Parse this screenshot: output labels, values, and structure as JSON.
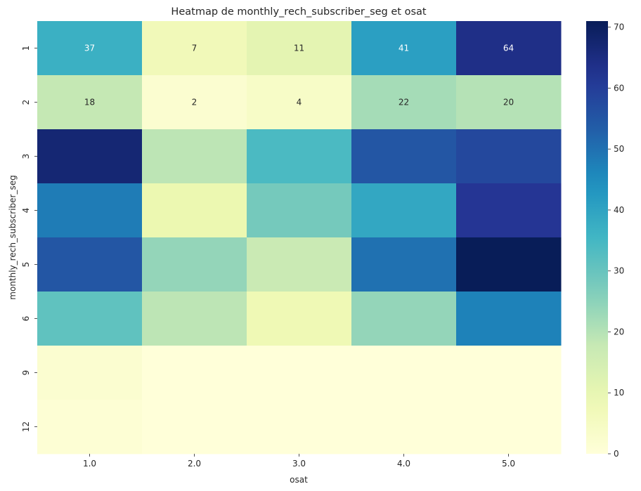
{
  "chart_data": {
    "type": "heatmap",
    "title": "Heatmap de monthly_rech_subscriber_seg et osat",
    "xlabel": "osat",
    "ylabel": "monthly_rech_subscriber_seg",
    "x_categories": [
      "1.0",
      "2.0",
      "3.0",
      "4.0",
      "5.0"
    ],
    "y_categories": [
      "1",
      "2",
      "3",
      "4",
      "5",
      "6",
      "9",
      "12"
    ],
    "values": [
      [
        37,
        7,
        11,
        41,
        64
      ],
      [
        18,
        2,
        4,
        22,
        20
      ],
      [
        67,
        19,
        34,
        55,
        58
      ],
      [
        48,
        9,
        28,
        39,
        62
      ],
      [
        55,
        24,
        17,
        50,
        71
      ],
      [
        31,
        19,
        8,
        24,
        47
      ],
      [
        2,
        0,
        0,
        0,
        0
      ],
      [
        1,
        0,
        0,
        0,
        0
      ]
    ],
    "annotated_rows": 2,
    "colorbar": {
      "min": 0,
      "max": 71,
      "ticks": [
        0,
        10,
        20,
        30,
        40,
        50,
        60,
        70
      ],
      "colormap": "YlGnBu"
    }
  }
}
